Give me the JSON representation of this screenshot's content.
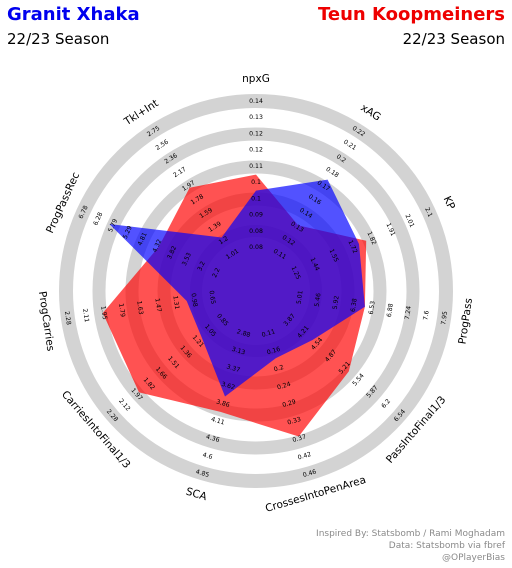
{
  "header": {
    "player1": "Granit Xhaka",
    "player2": "Teun Koopmeiners",
    "season1": "22/23 Season",
    "season2": "22/23 Season"
  },
  "credits": {
    "line1": "Inspired By: Statsbomb / Rami Moghadam",
    "line2": "Data: Statsbomb via fbref",
    "line3": "@OPlayerBias"
  },
  "chart_data": {
    "type": "radar",
    "title": "",
    "colors": {
      "player1": "#0000ff",
      "player2": "#ff0000",
      "rings": "#d3d3d3"
    },
    "params": [
      "npxG",
      "xAG",
      "KP",
      "ProgPass",
      "PassIntoFinal1/3",
      "CrossesIntoPenArea",
      "SCA",
      "CarriesIntoFinal1/3",
      "ProgCarries",
      "ProgPassRec",
      "Tkl+Int"
    ],
    "ticks": [
      [
        "0.08",
        "0.08",
        "0.09",
        "0.1",
        "0.1",
        "0.11",
        "0.12",
        "0.12",
        "0.13",
        "0.14"
      ],
      [
        "0.11",
        "0.12",
        "0.13",
        "0.14",
        "0.16",
        "0.17",
        "0.18",
        "0.2",
        "0.21",
        "0.22"
      ],
      [
        "1.25",
        "1.44",
        "1.55",
        "1.72",
        "1.82",
        "1.91",
        "2.01",
        "2.1"
      ],
      [
        "5.01",
        "5.46",
        "5.92",
        "6.38",
        "6.53",
        "6.88",
        "7.24",
        "7.6",
        "7.95"
      ],
      [
        "3.87",
        "4.21",
        "4.54",
        "4.87",
        "5.21",
        "5.54",
        "5.87",
        "6.2",
        "6.54"
      ],
      [
        "0.11",
        "0.16",
        "0.2",
        "0.24",
        "0.29",
        "0.33",
        "0.37",
        "0.42",
        "0.46"
      ],
      [
        "2.88",
        "3.13",
        "3.37",
        "3.62",
        "3.86",
        "4.11",
        "4.36",
        "4.6",
        "4.85"
      ],
      [
        "0.85",
        "1.05",
        "1.21",
        "1.36",
        "1.51",
        "1.66",
        "1.82",
        "1.97",
        "2.12",
        "2.28"
      ],
      [
        "0.65",
        "0.98",
        "1.31",
        "1.47",
        "1.63",
        "1.79",
        "1.95",
        "2.11",
        "2.28"
      ],
      [
        "2.2",
        "3.2",
        "3.53",
        "3.82",
        "4.32",
        "4.81",
        "5.29",
        "5.79",
        "6.28",
        "6.78"
      ],
      [
        "1.01",
        "1.2",
        "1.39",
        "1.59",
        "1.78",
        "1.97",
        "2.17",
        "2.36",
        "2.56",
        "2.75"
      ]
    ],
    "series": [
      {
        "name": "Granit Xhaka",
        "color": "#0000ff",
        "values_pct": [
          0.44,
          0.64,
          0.52,
          0.5,
          0.28,
          0.25,
          0.5,
          0.26,
          0.25,
          0.82,
          0.21
        ]
      },
      {
        "name": "Teun Koopmeiners",
        "color": "#ff0000",
        "values_pct": [
          0.54,
          0.3,
          0.57,
          0.5,
          0.58,
          0.76,
          0.6,
          0.78,
          0.78,
          0.48,
          0.58
        ]
      }
    ]
  }
}
